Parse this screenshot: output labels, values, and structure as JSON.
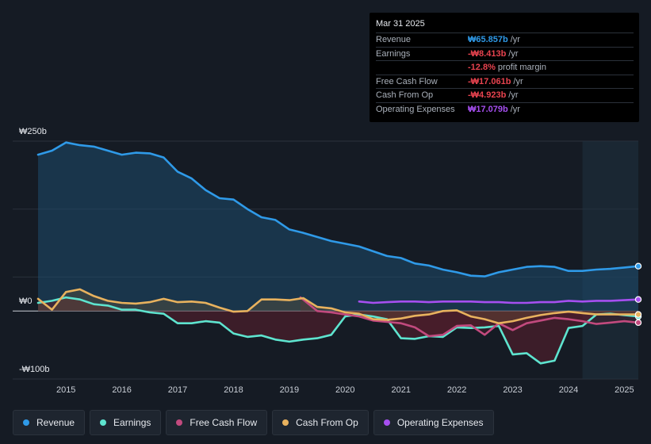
{
  "tooltip": {
    "date": "Mar 31 2025",
    "rows": [
      {
        "label": "Revenue",
        "value": "₩65.857b",
        "unit": "/yr",
        "color": "#2f9ae8"
      },
      {
        "label": "Earnings",
        "value": "-₩8.413b",
        "unit": "/yr",
        "color": "#e8434f"
      },
      {
        "label": "",
        "value": "-12.8%",
        "unit": "profit margin",
        "color": "#e8434f"
      },
      {
        "label": "Free Cash Flow",
        "value": "-₩17.061b",
        "unit": "/yr",
        "color": "#e8434f"
      },
      {
        "label": "Cash From Op",
        "value": "-₩4.923b",
        "unit": "/yr",
        "color": "#e8434f"
      },
      {
        "label": "Operating Expenses",
        "value": "₩17.079b",
        "unit": "/yr",
        "color": "#a64ff0"
      }
    ]
  },
  "legend": [
    {
      "label": "Revenue",
      "color": "#2f9ae8"
    },
    {
      "label": "Earnings",
      "color": "#5ee4cf"
    },
    {
      "label": "Free Cash Flow",
      "color": "#c24a7e"
    },
    {
      "label": "Cash From Op",
      "color": "#e8b25e"
    },
    {
      "label": "Operating Expenses",
      "color": "#a64ff0"
    }
  ],
  "chart_data": {
    "type": "area",
    "title": "",
    "xlabel": "",
    "ylabel": "",
    "y_tick_labels": [
      "₩250b",
      "₩0",
      "-₩100b"
    ],
    "ylim": [
      -100,
      250
    ],
    "x_tick_labels": [
      "2015",
      "2016",
      "2017",
      "2018",
      "2019",
      "2020",
      "2021",
      "2022",
      "2023",
      "2024",
      "2025"
    ],
    "xlim": [
      2014.5,
      2025.25
    ],
    "forecast_start": 2024.25,
    "series": [
      {
        "name": "Revenue",
        "color": "#2f9ae8",
        "points": [
          [
            2014.5,
            230
          ],
          [
            2014.75,
            236
          ],
          [
            2015.0,
            248
          ],
          [
            2015.25,
            244
          ],
          [
            2015.5,
            242
          ],
          [
            2015.75,
            236
          ],
          [
            2016.0,
            230
          ],
          [
            2016.25,
            233
          ],
          [
            2016.5,
            232
          ],
          [
            2016.75,
            226
          ],
          [
            2017.0,
            205
          ],
          [
            2017.25,
            195
          ],
          [
            2017.5,
            178
          ],
          [
            2017.75,
            166
          ],
          [
            2018.0,
            164
          ],
          [
            2018.25,
            150
          ],
          [
            2018.5,
            138
          ],
          [
            2018.75,
            134
          ],
          [
            2019.0,
            120
          ],
          [
            2019.25,
            115
          ],
          [
            2019.5,
            109
          ],
          [
            2019.75,
            103
          ],
          [
            2020.0,
            99
          ],
          [
            2020.25,
            95
          ],
          [
            2020.5,
            88
          ],
          [
            2020.75,
            81
          ],
          [
            2021.0,
            78
          ],
          [
            2021.25,
            70
          ],
          [
            2021.5,
            67
          ],
          [
            2021.75,
            61
          ],
          [
            2022.0,
            57
          ],
          [
            2022.25,
            52
          ],
          [
            2022.5,
            51
          ],
          [
            2022.75,
            57
          ],
          [
            2023.0,
            61
          ],
          [
            2023.25,
            65
          ],
          [
            2023.5,
            66
          ],
          [
            2023.75,
            65
          ],
          [
            2024.0,
            59
          ],
          [
            2024.25,
            59
          ],
          [
            2024.5,
            61
          ],
          [
            2024.75,
            62
          ],
          [
            2025.0,
            64
          ],
          [
            2025.25,
            66
          ]
        ]
      },
      {
        "name": "Earnings",
        "color": "#5ee4cf",
        "points": [
          [
            2014.5,
            12
          ],
          [
            2014.75,
            15
          ],
          [
            2015.0,
            20
          ],
          [
            2015.25,
            17
          ],
          [
            2015.5,
            10
          ],
          [
            2015.75,
            8
          ],
          [
            2016.0,
            2
          ],
          [
            2016.25,
            2
          ],
          [
            2016.5,
            -2
          ],
          [
            2016.75,
            -4
          ],
          [
            2017.0,
            -18
          ],
          [
            2017.25,
            -18
          ],
          [
            2017.5,
            -15
          ],
          [
            2017.75,
            -17
          ],
          [
            2018.0,
            -33
          ],
          [
            2018.25,
            -38
          ],
          [
            2018.5,
            -36
          ],
          [
            2018.75,
            -42
          ],
          [
            2019.0,
            -45
          ],
          [
            2019.25,
            -42
          ],
          [
            2019.5,
            -40
          ],
          [
            2019.75,
            -35
          ],
          [
            2020.0,
            -8
          ],
          [
            2020.25,
            -5
          ],
          [
            2020.5,
            -8
          ],
          [
            2020.75,
            -12
          ],
          [
            2021.0,
            -40
          ],
          [
            2021.25,
            -41
          ],
          [
            2021.5,
            -37
          ],
          [
            2021.75,
            -38
          ],
          [
            2022.0,
            -24
          ],
          [
            2022.25,
            -25
          ],
          [
            2022.5,
            -24
          ],
          [
            2022.75,
            -22
          ],
          [
            2023.0,
            -64
          ],
          [
            2023.25,
            -62
          ],
          [
            2023.5,
            -77
          ],
          [
            2023.75,
            -73
          ],
          [
            2024.0,
            -25
          ],
          [
            2024.25,
            -22
          ],
          [
            2024.5,
            -5
          ],
          [
            2024.75,
            -4
          ],
          [
            2025.0,
            -6
          ],
          [
            2025.25,
            -8
          ]
        ]
      },
      {
        "name": "Free Cash Flow",
        "color": "#c24a7e",
        "points": [
          [
            2019.2,
            20
          ],
          [
            2019.5,
            0
          ],
          [
            2019.75,
            -2
          ],
          [
            2020.0,
            -5
          ],
          [
            2020.25,
            -8
          ],
          [
            2020.5,
            -14
          ],
          [
            2020.75,
            -16
          ],
          [
            2021.0,
            -18
          ],
          [
            2021.25,
            -24
          ],
          [
            2021.5,
            -37
          ],
          [
            2021.75,
            -35
          ],
          [
            2022.0,
            -22
          ],
          [
            2022.25,
            -21
          ],
          [
            2022.5,
            -35
          ],
          [
            2022.75,
            -18
          ],
          [
            2023.0,
            -28
          ],
          [
            2023.25,
            -18
          ],
          [
            2023.5,
            -14
          ],
          [
            2023.75,
            -10
          ],
          [
            2024.0,
            -12
          ],
          [
            2024.25,
            -15
          ],
          [
            2024.5,
            -19
          ],
          [
            2024.75,
            -17
          ],
          [
            2025.0,
            -15
          ],
          [
            2025.25,
            -17
          ]
        ]
      },
      {
        "name": "Cash From Op",
        "color": "#e8b25e",
        "points": [
          [
            2014.5,
            18
          ],
          [
            2014.75,
            2
          ],
          [
            2015.0,
            28
          ],
          [
            2015.25,
            32
          ],
          [
            2015.5,
            22
          ],
          [
            2015.75,
            15
          ],
          [
            2016.0,
            12
          ],
          [
            2016.25,
            11
          ],
          [
            2016.5,
            13
          ],
          [
            2016.75,
            18
          ],
          [
            2017.0,
            13
          ],
          [
            2017.25,
            14
          ],
          [
            2017.5,
            12
          ],
          [
            2017.75,
            5
          ],
          [
            2018.0,
            -1
          ],
          [
            2018.25,
            0
          ],
          [
            2018.5,
            17
          ],
          [
            2018.75,
            17
          ],
          [
            2019.0,
            16
          ],
          [
            2019.25,
            19
          ],
          [
            2019.5,
            6
          ],
          [
            2019.75,
            4
          ],
          [
            2020.0,
            -2
          ],
          [
            2020.25,
            -4
          ],
          [
            2020.5,
            -12
          ],
          [
            2020.75,
            -13
          ],
          [
            2021.0,
            -11
          ],
          [
            2021.25,
            -7
          ],
          [
            2021.5,
            -5
          ],
          [
            2021.75,
            0
          ],
          [
            2022.0,
            1
          ],
          [
            2022.25,
            -8
          ],
          [
            2022.5,
            -12
          ],
          [
            2022.75,
            -18
          ],
          [
            2023.0,
            -15
          ],
          [
            2023.25,
            -10
          ],
          [
            2023.5,
            -6
          ],
          [
            2023.75,
            -3
          ],
          [
            2024.0,
            -1
          ],
          [
            2024.25,
            -3
          ],
          [
            2024.5,
            -5
          ],
          [
            2024.75,
            -5
          ],
          [
            2025.0,
            -5
          ],
          [
            2025.25,
            -5
          ]
        ]
      },
      {
        "name": "Operating Expenses",
        "color": "#a64ff0",
        "points": [
          [
            2020.25,
            14
          ],
          [
            2020.5,
            12
          ],
          [
            2020.75,
            13
          ],
          [
            2021.0,
            14
          ],
          [
            2021.25,
            14
          ],
          [
            2021.5,
            13
          ],
          [
            2021.75,
            14
          ],
          [
            2022.0,
            14
          ],
          [
            2022.25,
            14
          ],
          [
            2022.5,
            13
          ],
          [
            2022.75,
            13
          ],
          [
            2023.0,
            12
          ],
          [
            2023.25,
            12
          ],
          [
            2023.5,
            13
          ],
          [
            2023.75,
            13
          ],
          [
            2024.0,
            15
          ],
          [
            2024.25,
            14
          ],
          [
            2024.5,
            15
          ],
          [
            2024.75,
            15
          ],
          [
            2025.0,
            16
          ],
          [
            2025.25,
            17
          ]
        ]
      }
    ]
  }
}
